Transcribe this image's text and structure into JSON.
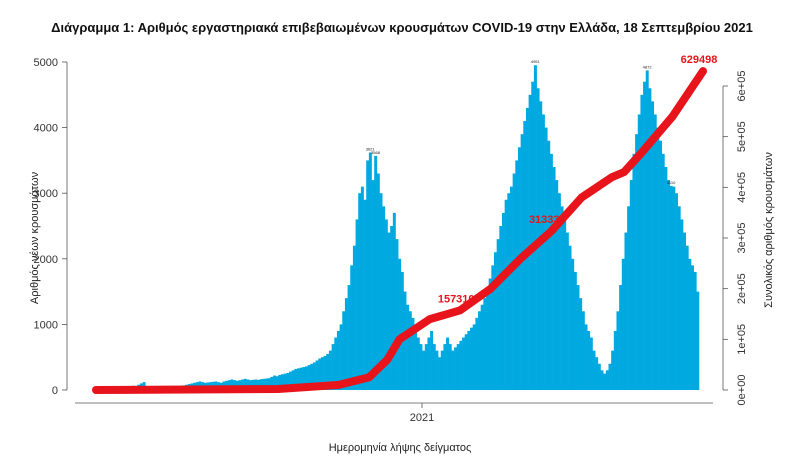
{
  "chart_data": {
    "type": "bar",
    "title": "Διάγραμμα 1: Αριθμός εργαστηριακά επιβεβαιωμένων κρουσμάτων COVID-19 στην Ελλάδα, 18 Σεπτεμβρίου 2021",
    "xlabel": "Ημερομηνία λήψης δείγματος",
    "ylabel": "Αριθμός νέων κρουσμάτων",
    "y2label": "Συνολικός αριθμός κρουσμάτων",
    "x_tick": "2021",
    "ylim": [
      0,
      5000
    ],
    "yticks": [
      "0",
      "1000",
      "2000",
      "3000",
      "4000",
      "5000"
    ],
    "y2lim": [
      0,
      600000
    ],
    "y2ticks": [
      "0e+00",
      "1e+05",
      "2e+05",
      "3e+05",
      "4e+05",
      "5e+05",
      "6e+05"
    ],
    "bar_color": "#00a9e0",
    "line_color": "#e8141c",
    "daily_cases": [
      10,
      15,
      20,
      25,
      30,
      32,
      35,
      33,
      40,
      45,
      38,
      40,
      50,
      55,
      60,
      65,
      60,
      80,
      100,
      120,
      60,
      50,
      40,
      30,
      40,
      50,
      55,
      60,
      50,
      45,
      50,
      40,
      45,
      60,
      70,
      80,
      90,
      100,
      110,
      120,
      130,
      120,
      110,
      115,
      120,
      125,
      130,
      120,
      110,
      130,
      140,
      150,
      160,
      150,
      140,
      150,
      160,
      170,
      160,
      150,
      155,
      160,
      155,
      165,
      170,
      175,
      180,
      200,
      220,
      210,
      230,
      240,
      250,
      260,
      280,
      300,
      320,
      330,
      340,
      350,
      360,
      380,
      400,
      420,
      450,
      480,
      500,
      520,
      550,
      600,
      700,
      800,
      900,
      1000,
      1200,
      1400,
      1600,
      1900,
      2200,
      2600,
      3000,
      3100,
      2900,
      3500,
      3621,
      3200,
      3568,
      3300,
      3000,
      2800,
      2600,
      2400,
      2500,
      2700,
      2300,
      2000,
      1800,
      1500,
      1300,
      1200,
      1100,
      900,
      800,
      700,
      600,
      700,
      800,
      900,
      700,
      600,
      500,
      600,
      700,
      800,
      700,
      600,
      650,
      700,
      750,
      800,
      850,
      900,
      950,
      1000,
      1100,
      1200,
      1300,
      1400,
      1500,
      1700,
      1900,
      2100,
      2300,
      2500,
      2700,
      2900,
      3000,
      3100,
      3300,
      3500,
      3700,
      3900,
      4100,
      4300,
      4500,
      4700,
      4951,
      4600,
      4400,
      4200,
      4000,
      3800,
      3600,
      3400,
      3200,
      3000,
      2800,
      2600,
      2400,
      2200,
      2000,
      1800,
      1600,
      1400,
      1200,
      1000,
      900,
      800,
      600,
      500,
      400,
      300,
      250,
      300,
      400,
      600,
      900,
      1200,
      1600,
      2000,
      2400,
      2800,
      3200,
      3600,
      3900,
      4200,
      4500,
      4700,
      4872,
      4600,
      4400,
      4200,
      4000,
      3800,
      3600,
      3400,
      3200,
      3110,
      3100,
      3000,
      2800,
      2600,
      2400,
      2200,
      2000,
      1900,
      1800,
      1500
    ],
    "bar_label_values": [
      3621,
      3568,
      4951,
      4872,
      3110
    ],
    "annotations": [
      {
        "label": "629498"
      },
      {
        "label": "313333"
      },
      {
        "label": "157310"
      }
    ],
    "cumulative": [
      [
        0,
        0
      ],
      [
        0.3,
        2000
      ],
      [
        0.4,
        10000
      ],
      [
        0.45,
        25000
      ],
      [
        0.48,
        60000
      ],
      [
        0.5,
        100000
      ],
      [
        0.55,
        140000
      ],
      [
        0.6,
        157310
      ],
      [
        0.65,
        200000
      ],
      [
        0.7,
        260000
      ],
      [
        0.75,
        313333
      ],
      [
        0.8,
        380000
      ],
      [
        0.85,
        420000
      ],
      [
        0.87,
        430000
      ],
      [
        0.9,
        470000
      ],
      [
        0.95,
        540000
      ],
      [
        1.0,
        629498
      ]
    ]
  }
}
